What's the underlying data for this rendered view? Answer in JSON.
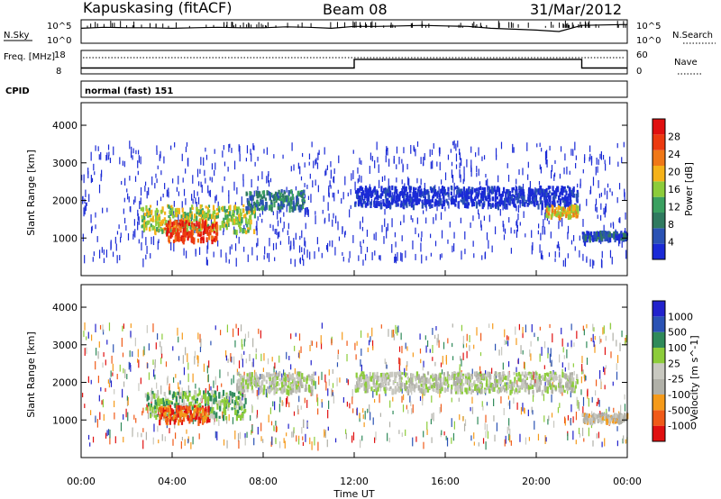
{
  "header": {
    "station": "Kapuskasing (fitACF)",
    "beam": "Beam 08",
    "date": "31/Mar/2012"
  },
  "colors": {
    "power": [
      "#1a2ad6",
      "#2a52b4",
      "#2f7a5f",
      "#3aa060",
      "#8ccc3a",
      "#f5b21a",
      "#f07818",
      "#ec3a10",
      "#e01010"
    ],
    "velocity": [
      "#e01010",
      "#f05a18",
      "#f59a1a",
      "#b0b0a8",
      "#c8c8c0",
      "#8ccc3a",
      "#2f8a5a",
      "#2a52b4",
      "#2222cc"
    ],
    "grey_scatter": "#bdbdb5"
  },
  "chart_data": [
    {
      "type": "line",
      "panel": "noise",
      "left_label": "N.Sky",
      "right_label": "N.Search",
      "yticks_left": [
        "10^5",
        "10^0"
      ],
      "yticks_right": [
        "10^5",
        "10^0"
      ],
      "series": [
        {
          "x": [
            0,
            1,
            2,
            3,
            4,
            5,
            6,
            7,
            8,
            9,
            10,
            11,
            12,
            13,
            14,
            15,
            16,
            17,
            18,
            19,
            20,
            21,
            22,
            23,
            24
          ],
          "values": [
            3.2,
            3.4,
            3.3,
            3.3,
            3.2,
            3.3,
            3.4,
            3.3,
            3.3,
            3.5,
            3.4,
            3.2,
            3.6,
            3.6,
            3.7,
            3.8,
            3.7,
            3.6,
            3.2,
            3.0,
            2.8,
            2.5,
            3.8,
            3.9,
            4.0
          ]
        }
      ]
    },
    {
      "type": "line",
      "panel": "frequency",
      "left_label": "Freq. [MHz]",
      "right_label": "Nave",
      "yticks_left": [
        "18",
        "8"
      ],
      "yticks_right": [
        "60",
        "0"
      ],
      "series": [
        {
          "x": [
            0,
            12,
            12,
            22,
            22,
            24
          ],
          "values": [
            10.5,
            10.5,
            14.2,
            14.2,
            10.5,
            10.5
          ]
        }
      ]
    },
    {
      "type": "heatmap",
      "panel": "cpid",
      "left_label": "CPID",
      "annotation": "normal (fast) 151"
    },
    {
      "type": "heatmap",
      "panel": "power",
      "xlim": [
        0,
        24
      ],
      "ylim": [
        0,
        4600
      ],
      "ylabel": "Slant Range [km]",
      "yticks": [
        1000,
        2000,
        3000,
        4000
      ],
      "colorbar_label": "Power [dB]",
      "colorbar_ticks": [
        "4",
        "8",
        "12",
        "16",
        "20",
        "24",
        "28"
      ],
      "blobs": [
        {
          "t0": 2.6,
          "t1": 7.6,
          "r0": 1200,
          "r1": 1900,
          "level": 4
        },
        {
          "t0": 3.6,
          "t1": 6.0,
          "r0": 950,
          "r1": 1500,
          "level": 7
        },
        {
          "t0": 7.2,
          "t1": 9.8,
          "r0": 1800,
          "r1": 2300,
          "level": 2
        },
        {
          "t0": 12.0,
          "t1": 21.8,
          "r0": 1900,
          "r1": 2400,
          "level": 0
        },
        {
          "t0": 20.4,
          "t1": 21.8,
          "r0": 1600,
          "r1": 1900,
          "level": 5
        },
        {
          "t0": 22.0,
          "t1": 24.0,
          "r0": 1000,
          "r1": 1200,
          "level": 1
        }
      ]
    },
    {
      "type": "heatmap",
      "panel": "velocity",
      "xlim": [
        0,
        24
      ],
      "ylim": [
        0,
        4600
      ],
      "ylabel": "Slant Range [km]",
      "xlabel": "Time UT",
      "yticks": [
        1000,
        2000,
        3000,
        4000
      ],
      "xticks": [
        "00:00",
        "04:00",
        "08:00",
        "12:00",
        "16:00",
        "20:00",
        "00:00"
      ],
      "colorbar_label": "Velocity [m s^-1]",
      "colorbar_ticks": [
        "-1000",
        "-500",
        "-100",
        "-25",
        "25",
        "100",
        "500",
        "1000"
      ],
      "blobs": [
        {
          "t0": 2.8,
          "t1": 7.2,
          "r0": 1100,
          "r1": 1800,
          "level": 5
        },
        {
          "t0": 3.4,
          "t1": 5.6,
          "r0": 1000,
          "r1": 1400,
          "level": 1
        },
        {
          "t0": 6.8,
          "t1": 10.2,
          "r0": 1800,
          "r1": 2300,
          "level": 4
        },
        {
          "t0": 12.0,
          "t1": 21.8,
          "r0": 1800,
          "r1": 2300,
          "level": 4
        },
        {
          "t0": 22.0,
          "t1": 24.0,
          "r0": 1000,
          "r1": 1200,
          "level": 3
        }
      ]
    }
  ]
}
